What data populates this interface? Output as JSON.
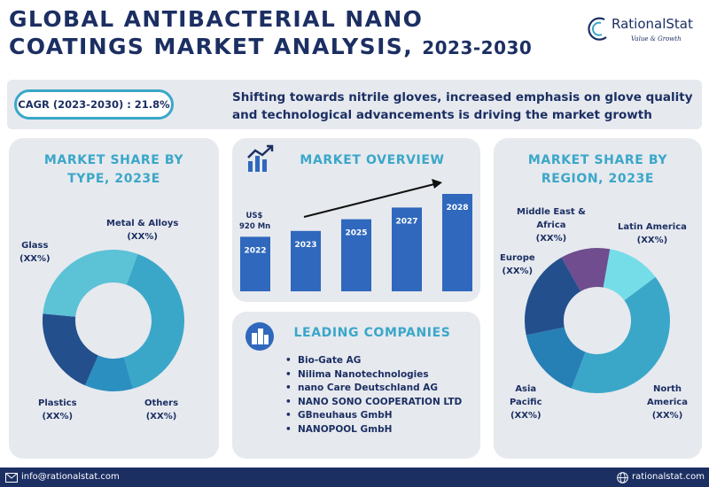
{
  "header": {
    "title_line1": "GLOBAL ANTIBACTERIAL NANO",
    "title_line2": "COATINGS MARKET ANALYSIS,",
    "title_years": "2023-2030"
  },
  "logo": {
    "name": "RationalStat",
    "tagline": "Value & Growth"
  },
  "banner": {
    "cagr": "CAGR (2023-2030) : 21.8%",
    "growth_line1": "Shifting towards nitrile gloves, increased emphasis on glove quality",
    "growth_line2": "and technological advancements is driving the market growth"
  },
  "panels": {
    "type_title_line1": "MARKET SHARE BY",
    "type_title_line2": "TYPE, 2023E",
    "overview_title": "MARKET OVERVIEW",
    "companies_title": "LEADING COMPANIES",
    "region_title_line1": "MARKET SHARE BY",
    "region_title_line2": "REGION, 2023E"
  },
  "chart_data": [
    {
      "type": "pie",
      "chart_title": "MARKET SHARE BY TYPE, 2023E",
      "slices": [
        {
          "label": "Metal & Alloys",
          "value_label": "(XX%)",
          "share": 40,
          "color": "#3aa7c9"
        },
        {
          "label": "Others",
          "value_label": "(XX%)",
          "share": 11,
          "color": "#2b8fc0"
        },
        {
          "label": "Plastics",
          "value_label": "(XX%)",
          "share": 20,
          "color": "#234f8c"
        },
        {
          "label": "Glass",
          "value_label": "(XX%)",
          "share": 29,
          "color": "#5cc2d6"
        }
      ]
    },
    {
      "type": "bar",
      "chart_title": "MARKET OVERVIEW",
      "categories": [
        "2022",
        "2023",
        "2025",
        "2027",
        "2028"
      ],
      "values": [
        56,
        62,
        74,
        86,
        100
      ],
      "value_annotation": "US$",
      "value_annotation_2": "920 Mn",
      "bar_color": "#2f68bd",
      "trend_arrow": true
    },
    {
      "type": "pie",
      "chart_title": "MARKET SHARE BY REGION, 2023E",
      "slices": [
        {
          "label": "Latin America",
          "value_label": "(XX%)",
          "share": 12,
          "color": "#74dde8"
        },
        {
          "label": "North America",
          "value_label": "(XX%)",
          "share": 41,
          "color": "#3aa7c9"
        },
        {
          "label": "Asia Pacific",
          "value_label": "(XX%)",
          "share": 16,
          "color": "#2680b5"
        },
        {
          "label": "Europe",
          "value_label": "(XX%)",
          "share": 20,
          "color": "#234f8c"
        },
        {
          "label": "Middle East & Africa",
          "value_label": "(XX%)",
          "share": 11,
          "color": "#6f4d8e"
        }
      ]
    }
  ],
  "companies": [
    "Bio-Gate AG",
    "Nilima Nanotechnologies",
    "nano Care Deutschland AG",
    "NANO SONO COOPERATION LTD",
    "GBneuhaus GmbH",
    "NANOPOOL GmbH"
  ],
  "icons": {
    "overview": "growth-chart-icon",
    "companies": "buildings-icon",
    "email": "envelope-icon",
    "web": "globe-icon"
  },
  "footer": {
    "email": "info@rationalstat.com",
    "website": "rationalstat.com"
  }
}
